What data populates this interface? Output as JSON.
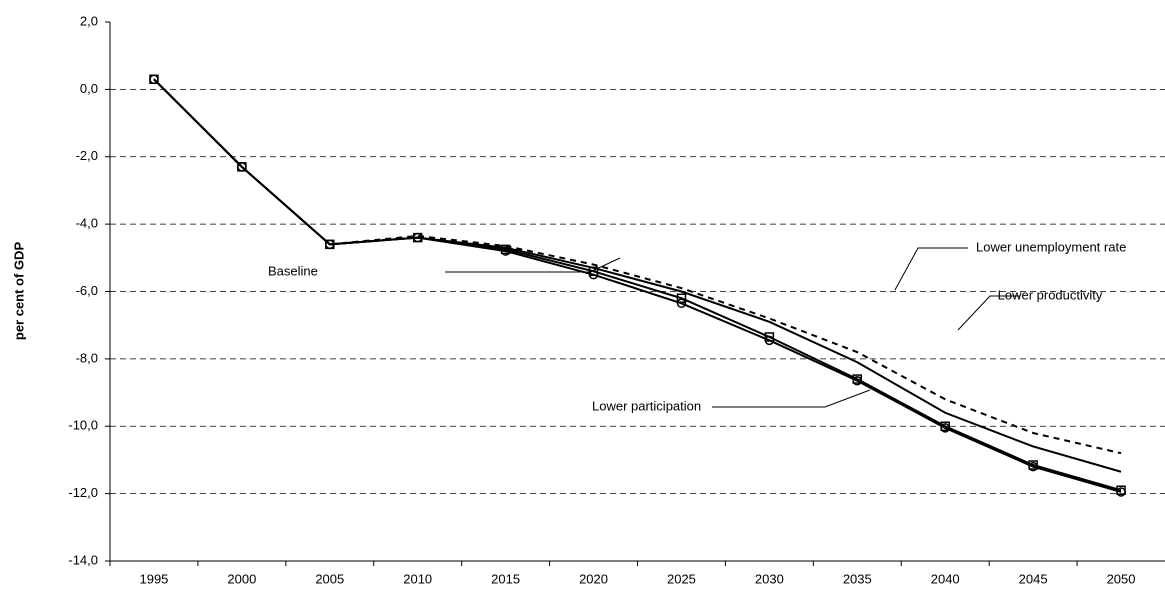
{
  "chart_data": {
    "type": "line",
    "y_axis_label": "per cent of GDP",
    "categories": [
      "1995",
      "2000",
      "2005",
      "2010",
      "2015",
      "2020",
      "2025",
      "2030",
      "2035",
      "2040",
      "2045",
      "2050"
    ],
    "series": [
      {
        "name": "Baseline",
        "color": "#000000",
        "marker": "none",
        "dashed": false,
        "values": [
          0.3,
          -2.3,
          -4.6,
          -4.4,
          -4.7,
          -5.3,
          -6.0,
          -6.9,
          -8.1,
          -9.6,
          -10.6,
          -11.35
        ]
      },
      {
        "name": "Lower productivity",
        "color": "#000000",
        "marker": "circle",
        "dashed": false,
        "values": [
          0.3,
          -2.3,
          -4.6,
          -4.4,
          -4.8,
          -5.5,
          -6.35,
          -7.45,
          -8.65,
          -10.05,
          -11.2,
          -11.95
        ]
      },
      {
        "name": "Lower participation",
        "color": "#000000",
        "marker": "square",
        "dashed": false,
        "values": [
          0.3,
          -2.3,
          -4.6,
          -4.4,
          -4.75,
          -5.4,
          -6.2,
          -7.35,
          -8.6,
          -10.0,
          -11.15,
          -11.9
        ]
      },
      {
        "name": "Lower unemployment rate",
        "color": "#000000",
        "marker": "none",
        "dashed": true,
        "values": [
          0.3,
          -2.3,
          -4.6,
          -4.35,
          -4.65,
          -5.2,
          -5.9,
          -6.8,
          -7.8,
          -9.2,
          -10.2,
          -10.8
        ]
      }
    ],
    "ylim": [
      -14,
      2
    ],
    "yticks": [
      {
        "value": -14,
        "label": "-14,0"
      },
      {
        "value": -12,
        "label": "-12,0"
      },
      {
        "value": -10,
        "label": "-10,0"
      },
      {
        "value": -8,
        "label": "-8,0"
      },
      {
        "value": -6,
        "label": "-6,0"
      },
      {
        "value": -4,
        "label": "-4,0"
      },
      {
        "value": -2,
        "label": "-2,0"
      },
      {
        "value": 0,
        "label": "0,0"
      },
      {
        "value": 2,
        "label": "2,0"
      }
    ],
    "grid": true
  }
}
